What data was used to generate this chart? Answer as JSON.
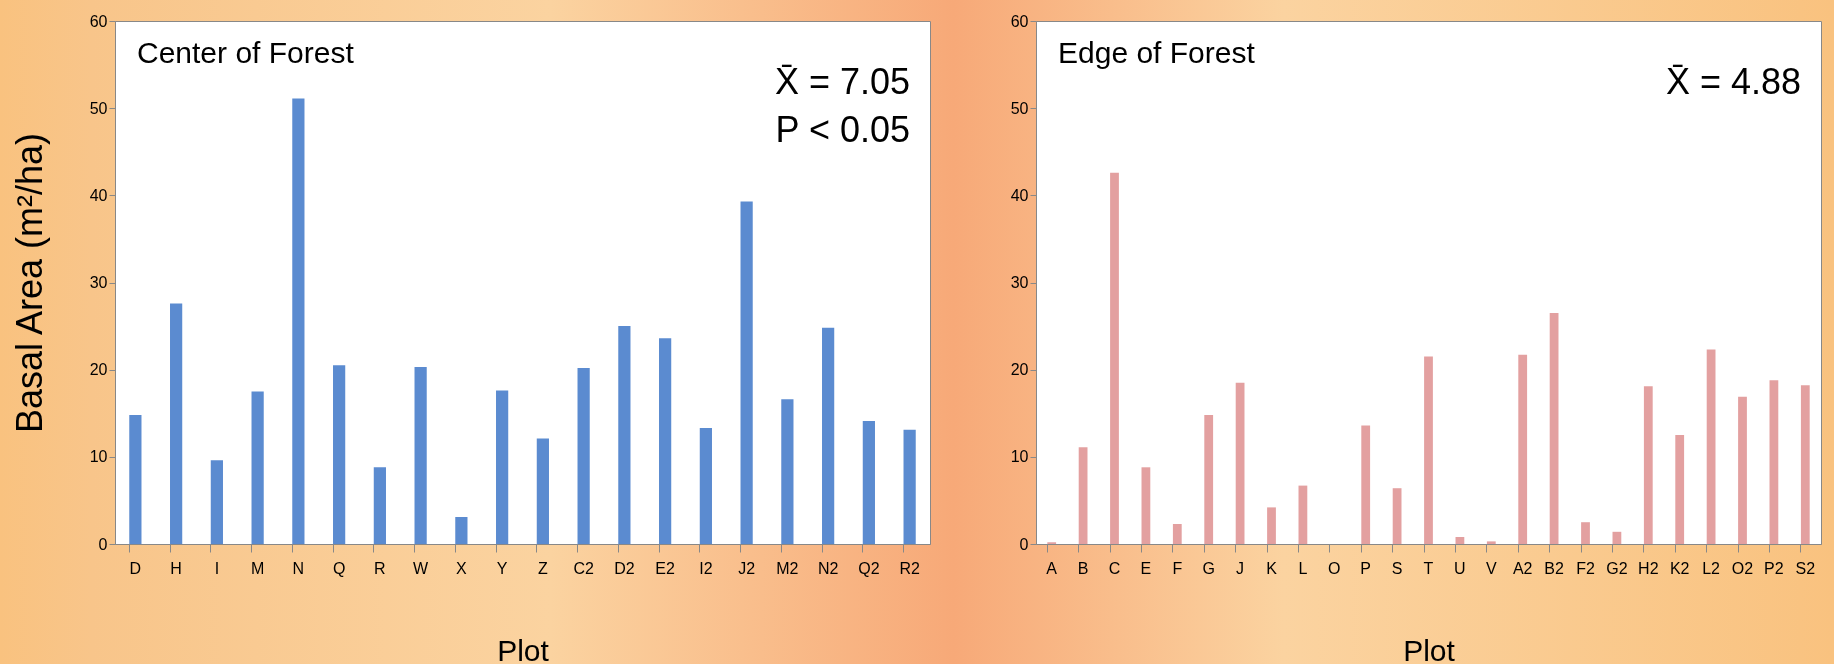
{
  "chart_data": [
    {
      "type": "bar",
      "title": "Center of Forest",
      "xlabel": "Plot",
      "ylabel": "Basal Area  (m²/ha)",
      "color": "#5b8bd0",
      "annotations": [
        "X̄ = 7.05",
        "P < 0.05"
      ],
      "categories": [
        "D",
        "H",
        "I",
        "M",
        "N",
        "Q",
        "R",
        "W",
        "X",
        "Y",
        "Z",
        "C2",
        "D2",
        "E2",
        "I2",
        "J2",
        "M2",
        "N2",
        "Q2",
        "R2"
      ],
      "values": [
        14.8,
        27.6,
        9.6,
        17.5,
        51.1,
        20.5,
        8.8,
        20.3,
        3.1,
        17.6,
        12.1,
        20.2,
        25.0,
        23.6,
        13.3,
        39.3,
        16.6,
        24.8,
        14.1,
        13.1
      ],
      "ylim": [
        0,
        60
      ],
      "yticks": [
        0,
        10,
        20,
        30,
        40,
        50,
        60
      ]
    },
    {
      "type": "bar",
      "title": "Edge of Forest",
      "xlabel": "Plot",
      "color": "#e3a0a0",
      "annotations": [
        "X̄ = 4.88"
      ],
      "categories": [
        "A",
        "B",
        "C",
        "E",
        "F",
        "G",
        "J",
        "K",
        "L",
        "O",
        "P",
        "S",
        "T",
        "U",
        "V",
        "A2",
        "B2",
        "F2",
        "G2",
        "H2",
        "K2",
        "L2",
        "O2",
        "P2",
        "S2"
      ],
      "values": [
        0.2,
        11.1,
        42.6,
        8.8,
        2.3,
        14.8,
        18.5,
        4.2,
        6.7,
        0,
        13.6,
        6.4,
        21.5,
        0.8,
        0.3,
        21.7,
        26.5,
        2.5,
        1.4,
        18.1,
        12.5,
        22.3,
        16.9,
        18.8,
        18.2
      ],
      "ylim": [
        0,
        60
      ],
      "yticks": [
        0,
        10,
        20,
        30,
        40,
        50,
        60
      ]
    }
  ]
}
